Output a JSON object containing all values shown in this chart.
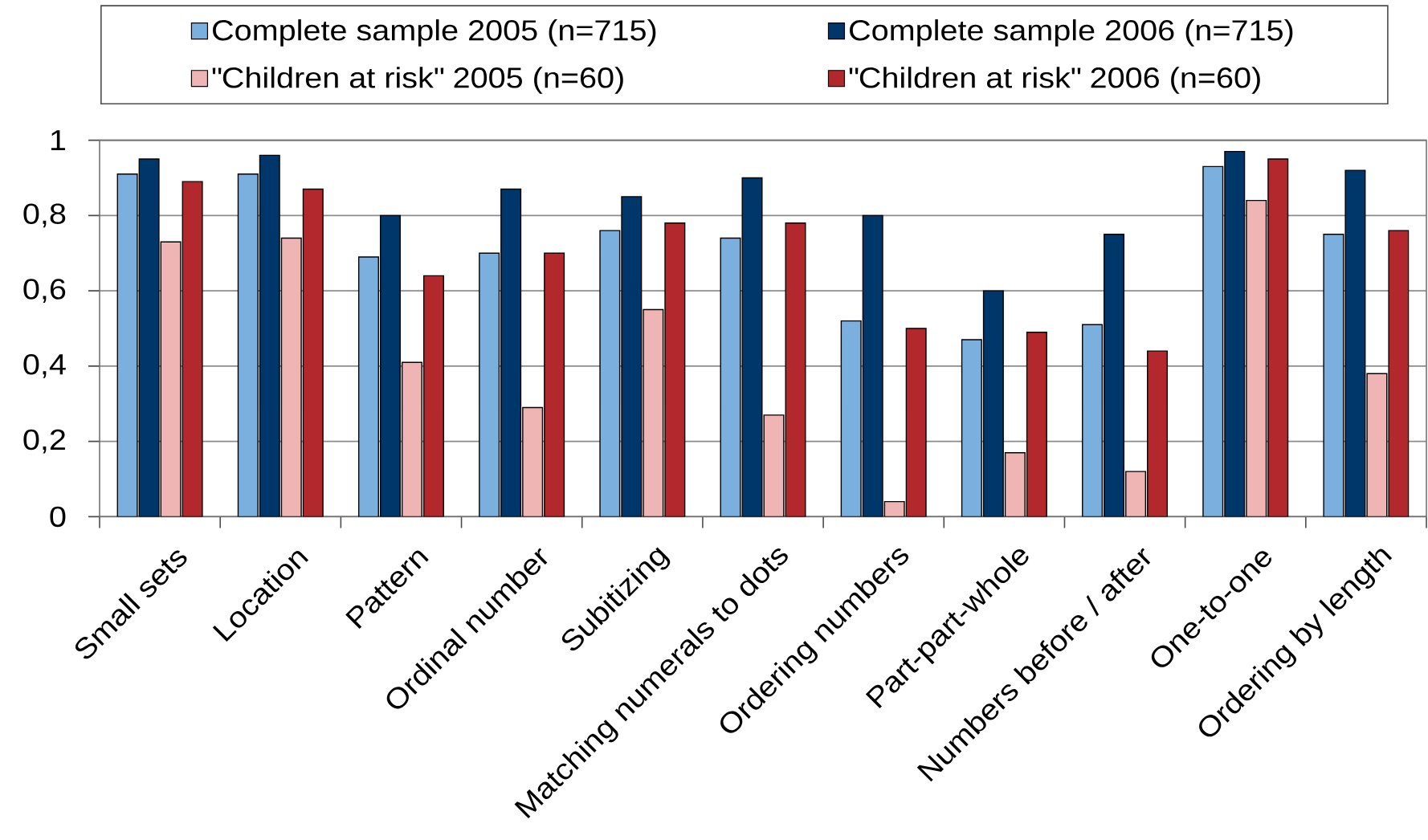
{
  "chart_data": {
    "type": "bar",
    "categories": [
      "Small sets",
      "Location",
      "Pattern",
      "Ordinal number",
      "Subitizing",
      "Matching numerals to dots",
      "Ordering numbers",
      "Part-part-whole",
      "Numbers before / after",
      "One-to-one",
      "Ordering by length"
    ],
    "series": [
      {
        "name": "Complete sample 2005 (n=715)",
        "color": "#7bafde",
        "values": [
          0.91,
          0.91,
          0.69,
          0.7,
          0.76,
          0.74,
          0.52,
          0.47,
          0.51,
          0.93,
          0.75
        ]
      },
      {
        "name": "Complete sample 2006 (n=715)",
        "color": "#00376b",
        "values": [
          0.95,
          0.96,
          0.8,
          0.87,
          0.85,
          0.9,
          0.8,
          0.6,
          0.75,
          0.97,
          0.92
        ]
      },
      {
        "name": "\"Children at risk\" 2005 (n=60)",
        "color": "#efb4b4",
        "values": [
          0.73,
          0.74,
          0.41,
          0.29,
          0.55,
          0.27,
          0.04,
          0.17,
          0.12,
          0.84,
          0.38
        ]
      },
      {
        "name": "\"Children at risk\" 2006 (n=60)",
        "color": "#b3282d",
        "values": [
          0.89,
          0.87,
          0.64,
          0.7,
          0.78,
          0.78,
          0.5,
          0.49,
          0.44,
          0.95,
          0.76
        ]
      }
    ],
    "ylim": [
      0,
      1
    ],
    "yticks": [
      0,
      {
        "value": 0.2,
        "label": "0,2"
      },
      {
        "value": 0.4,
        "label": "0,4"
      },
      {
        "value": 0.6,
        "label": "0,6"
      },
      {
        "value": 0.8,
        "label": "0,8"
      },
      1
    ],
    "grid": "y",
    "legend": "top"
  }
}
